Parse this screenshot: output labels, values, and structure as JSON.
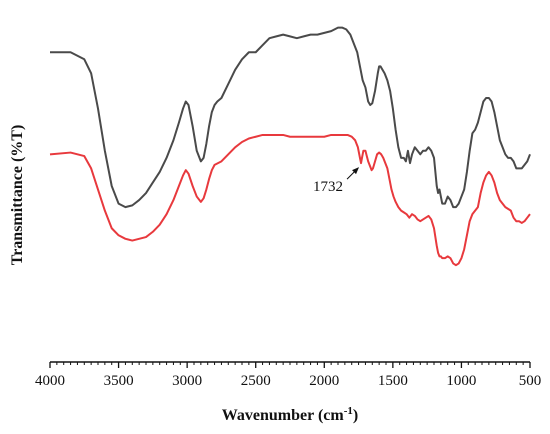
{
  "chart_data": {
    "type": "line",
    "title": "",
    "xlabel": "Wavenumber (cm",
    "xlabel_sup": "-1",
    "xlabel_close": ")",
    "ylabel": "Transmittance  (%T)",
    "xlim": [
      4000,
      500
    ],
    "x_reversed": true,
    "y_units": "arbitrary",
    "ylim": [
      0,
      100
    ],
    "y_ticks_labeled": false,
    "grid": false,
    "legend": "none",
    "xticks": [
      4000,
      3500,
      3000,
      2500,
      2000,
      1500,
      1000,
      500
    ],
    "xtick_labels": [
      "4000",
      "3500",
      "3000",
      "2500",
      "2000",
      "1500",
      "1000",
      "500"
    ],
    "series": [
      {
        "color": "#4a4a4a",
        "points": [
          [
            4000,
            88
          ],
          [
            3850,
            88
          ],
          [
            3750,
            86
          ],
          [
            3700,
            82
          ],
          [
            3650,
            72
          ],
          [
            3600,
            60
          ],
          [
            3550,
            50
          ],
          [
            3500,
            45
          ],
          [
            3450,
            44
          ],
          [
            3400,
            44.5
          ],
          [
            3350,
            46
          ],
          [
            3300,
            48
          ],
          [
            3250,
            51
          ],
          [
            3200,
            54
          ],
          [
            3150,
            58
          ],
          [
            3100,
            63
          ],
          [
            3060,
            68
          ],
          [
            3030,
            72
          ],
          [
            3010,
            74
          ],
          [
            2990,
            73
          ],
          [
            2960,
            67
          ],
          [
            2930,
            60
          ],
          [
            2900,
            57
          ],
          [
            2880,
            58
          ],
          [
            2860,
            62
          ],
          [
            2840,
            67
          ],
          [
            2820,
            71
          ],
          [
            2800,
            73
          ],
          [
            2780,
            74
          ],
          [
            2750,
            75
          ],
          [
            2700,
            79
          ],
          [
            2650,
            83
          ],
          [
            2600,
            86
          ],
          [
            2550,
            88
          ],
          [
            2500,
            88
          ],
          [
            2450,
            90
          ],
          [
            2400,
            92
          ],
          [
            2350,
            92.5
          ],
          [
            2300,
            93
          ],
          [
            2250,
            92.5
          ],
          [
            2200,
            92
          ],
          [
            2150,
            92.5
          ],
          [
            2100,
            93
          ],
          [
            2050,
            93
          ],
          [
            2000,
            93.5
          ],
          [
            1950,
            94
          ],
          [
            1900,
            95
          ],
          [
            1870,
            95
          ],
          [
            1840,
            94.5
          ],
          [
            1810,
            93
          ],
          [
            1780,
            90
          ],
          [
            1760,
            88
          ],
          [
            1740,
            84
          ],
          [
            1720,
            80
          ],
          [
            1700,
            78
          ],
          [
            1680,
            74
          ],
          [
            1665,
            73
          ],
          [
            1650,
            73.5
          ],
          [
            1630,
            77
          ],
          [
            1610,
            82
          ],
          [
            1600,
            84
          ],
          [
            1590,
            84
          ],
          [
            1575,
            83
          ],
          [
            1560,
            82
          ],
          [
            1540,
            80
          ],
          [
            1520,
            77
          ],
          [
            1500,
            72
          ],
          [
            1480,
            66
          ],
          [
            1460,
            61
          ],
          [
            1440,
            58
          ],
          [
            1420,
            58
          ],
          [
            1405,
            57
          ],
          [
            1390,
            60
          ],
          [
            1375,
            56.5
          ],
          [
            1360,
            59
          ],
          [
            1340,
            61
          ],
          [
            1320,
            60
          ],
          [
            1300,
            59
          ],
          [
            1280,
            60
          ],
          [
            1260,
            60
          ],
          [
            1240,
            61
          ],
          [
            1220,
            60
          ],
          [
            1200,
            58
          ],
          [
            1180,
            50
          ],
          [
            1170,
            48
          ],
          [
            1160,
            49
          ],
          [
            1150,
            47
          ],
          [
            1140,
            45
          ],
          [
            1120,
            45
          ],
          [
            1100,
            47
          ],
          [
            1080,
            46
          ],
          [
            1060,
            44
          ],
          [
            1040,
            44
          ],
          [
            1020,
            45
          ],
          [
            1000,
            47
          ],
          [
            980,
            49
          ],
          [
            960,
            54
          ],
          [
            940,
            60
          ],
          [
            920,
            65
          ],
          [
            900,
            66
          ],
          [
            880,
            68
          ],
          [
            860,
            71
          ],
          [
            840,
            74
          ],
          [
            820,
            75
          ],
          [
            800,
            75
          ],
          [
            780,
            74
          ],
          [
            760,
            71
          ],
          [
            740,
            67
          ],
          [
            720,
            63
          ],
          [
            700,
            61
          ],
          [
            680,
            59
          ],
          [
            660,
            58
          ],
          [
            640,
            58
          ],
          [
            620,
            57
          ],
          [
            600,
            55
          ],
          [
            580,
            55
          ],
          [
            560,
            55
          ],
          [
            540,
            56
          ],
          [
            520,
            57
          ],
          [
            500,
            59
          ]
        ]
      },
      {
        "color": "#e8393d",
        "points": [
          [
            4000,
            59
          ],
          [
            3850,
            59.5
          ],
          [
            3750,
            58.5
          ],
          [
            3700,
            55
          ],
          [
            3650,
            49
          ],
          [
            3600,
            43
          ],
          [
            3550,
            38
          ],
          [
            3500,
            36
          ],
          [
            3450,
            35
          ],
          [
            3400,
            34.5
          ],
          [
            3350,
            35
          ],
          [
            3300,
            35.5
          ],
          [
            3250,
            37
          ],
          [
            3200,
            39
          ],
          [
            3150,
            42
          ],
          [
            3100,
            46
          ],
          [
            3060,
            50
          ],
          [
            3030,
            53
          ],
          [
            3010,
            54.5
          ],
          [
            2990,
            53.5
          ],
          [
            2960,
            50
          ],
          [
            2930,
            47
          ],
          [
            2900,
            45.5
          ],
          [
            2880,
            46.5
          ],
          [
            2860,
            49
          ],
          [
            2840,
            52
          ],
          [
            2820,
            54.5
          ],
          [
            2800,
            56
          ],
          [
            2750,
            57
          ],
          [
            2700,
            59
          ],
          [
            2650,
            61
          ],
          [
            2600,
            62.5
          ],
          [
            2550,
            63.5
          ],
          [
            2500,
            64
          ],
          [
            2450,
            64.5
          ],
          [
            2400,
            64.5
          ],
          [
            2350,
            64.5
          ],
          [
            2300,
            64.5
          ],
          [
            2250,
            64
          ],
          [
            2200,
            64
          ],
          [
            2150,
            64
          ],
          [
            2100,
            64
          ],
          [
            2050,
            64
          ],
          [
            2000,
            64
          ],
          [
            1950,
            64.5
          ],
          [
            1900,
            64.5
          ],
          [
            1860,
            64.5
          ],
          [
            1830,
            64.5
          ],
          [
            1800,
            64
          ],
          [
            1775,
            63
          ],
          [
            1755,
            61
          ],
          [
            1740,
            58
          ],
          [
            1732,
            56.5
          ],
          [
            1725,
            58
          ],
          [
            1715,
            60
          ],
          [
            1700,
            60
          ],
          [
            1690,
            58.5
          ],
          [
            1680,
            57
          ],
          [
            1665,
            55.5
          ],
          [
            1655,
            54.5
          ],
          [
            1645,
            55
          ],
          [
            1630,
            57
          ],
          [
            1615,
            59
          ],
          [
            1600,
            59.5
          ],
          [
            1585,
            59
          ],
          [
            1570,
            58
          ],
          [
            1555,
            56.5
          ],
          [
            1540,
            55
          ],
          [
            1525,
            52
          ],
          [
            1510,
            49
          ],
          [
            1495,
            47
          ],
          [
            1480,
            45.5
          ],
          [
            1460,
            44
          ],
          [
            1440,
            43
          ],
          [
            1420,
            42.5
          ],
          [
            1400,
            42
          ],
          [
            1380,
            41
          ],
          [
            1360,
            42
          ],
          [
            1340,
            41.5
          ],
          [
            1320,
            40.5
          ],
          [
            1300,
            40
          ],
          [
            1280,
            40.5
          ],
          [
            1260,
            41
          ],
          [
            1240,
            41.5
          ],
          [
            1220,
            40.5
          ],
          [
            1200,
            38
          ],
          [
            1180,
            33
          ],
          [
            1170,
            31
          ],
          [
            1160,
            30
          ],
          [
            1150,
            30
          ],
          [
            1140,
            29.5
          ],
          [
            1120,
            29.5
          ],
          [
            1100,
            30
          ],
          [
            1080,
            29.5
          ],
          [
            1060,
            28
          ],
          [
            1040,
            27.5
          ],
          [
            1020,
            28
          ],
          [
            1000,
            29.5
          ],
          [
            980,
            32
          ],
          [
            960,
            36
          ],
          [
            940,
            40
          ],
          [
            920,
            42
          ],
          [
            900,
            43
          ],
          [
            880,
            44
          ],
          [
            860,
            48
          ],
          [
            840,
            51
          ],
          [
            820,
            53
          ],
          [
            800,
            54
          ],
          [
            780,
            53
          ],
          [
            760,
            51
          ],
          [
            740,
            48
          ],
          [
            720,
            46
          ],
          [
            700,
            45
          ],
          [
            680,
            44
          ],
          [
            660,
            43.5
          ],
          [
            640,
            43
          ],
          [
            620,
            41
          ],
          [
            600,
            40
          ],
          [
            580,
            40
          ],
          [
            560,
            39.5
          ],
          [
            540,
            40
          ],
          [
            520,
            41
          ],
          [
            500,
            42
          ]
        ]
      }
    ],
    "annotations": [
      {
        "text": "1732",
        "x": 1732,
        "y": 56.5
      }
    ]
  }
}
